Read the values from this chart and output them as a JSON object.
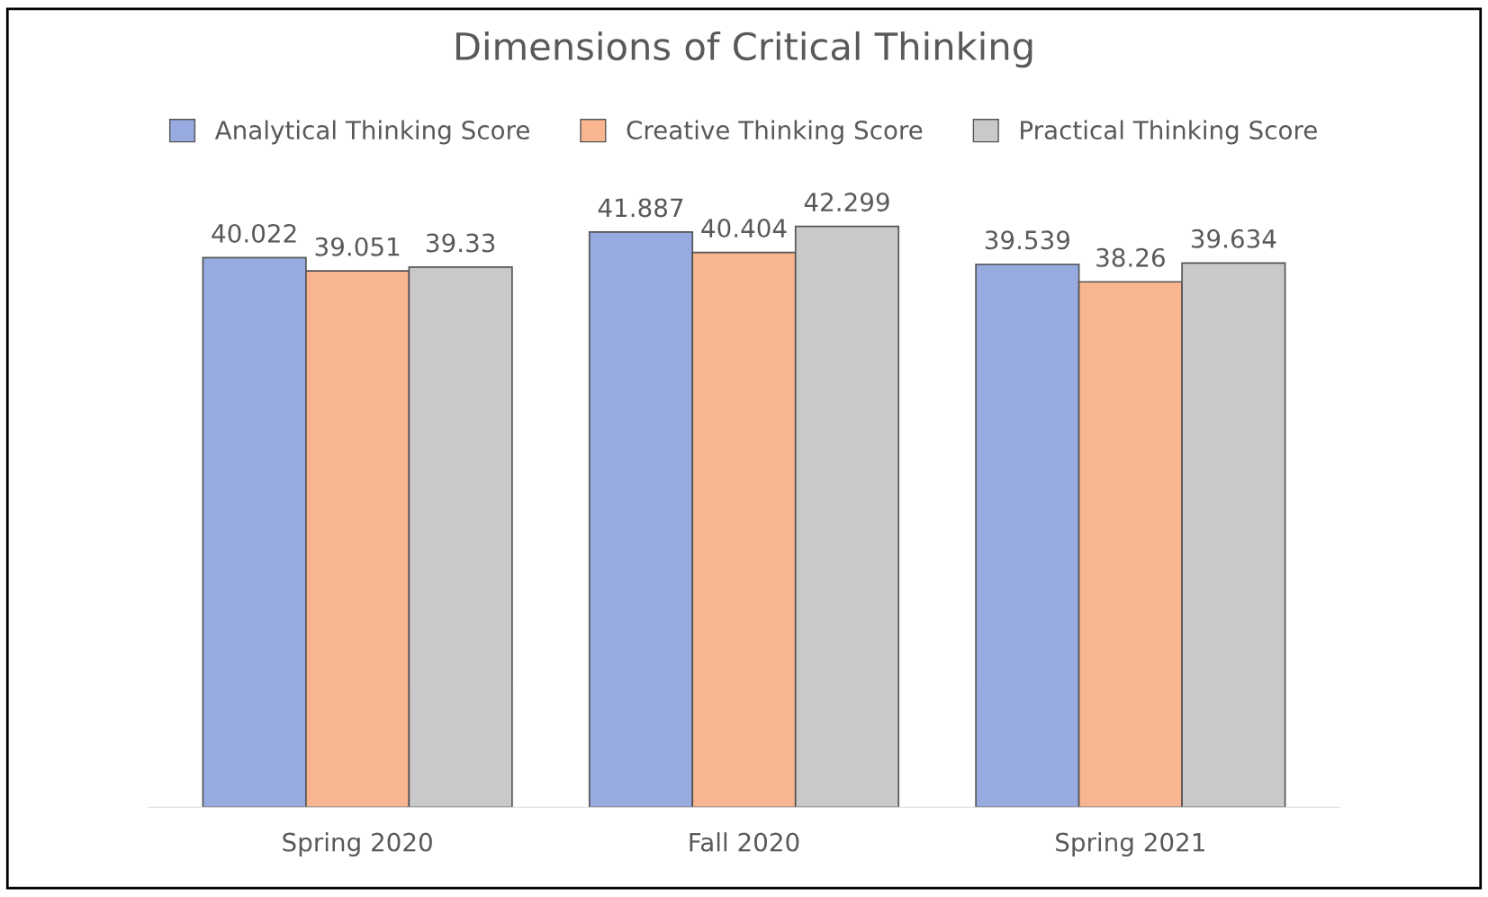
{
  "chart_data": {
    "type": "bar",
    "title": "Dimensions of Critical Thinking",
    "categories": [
      "Spring 2020",
      "Fall 2020",
      "Spring 2021"
    ],
    "series": [
      {
        "name": "Analytical Thinking Score",
        "color": "#97abe0",
        "values": [
          40.022,
          41.887,
          39.539
        ]
      },
      {
        "name": "Creative Thinking Score",
        "color": "#f9b490",
        "values": [
          39.051,
          40.404,
          38.26
        ]
      },
      {
        "name": "Practical Thinking Score",
        "color": "#c9c9c9",
        "values": [
          39.33,
          42.299,
          39.634
        ]
      }
    ],
    "data_labels": true,
    "legend": "top",
    "grid": false
  }
}
